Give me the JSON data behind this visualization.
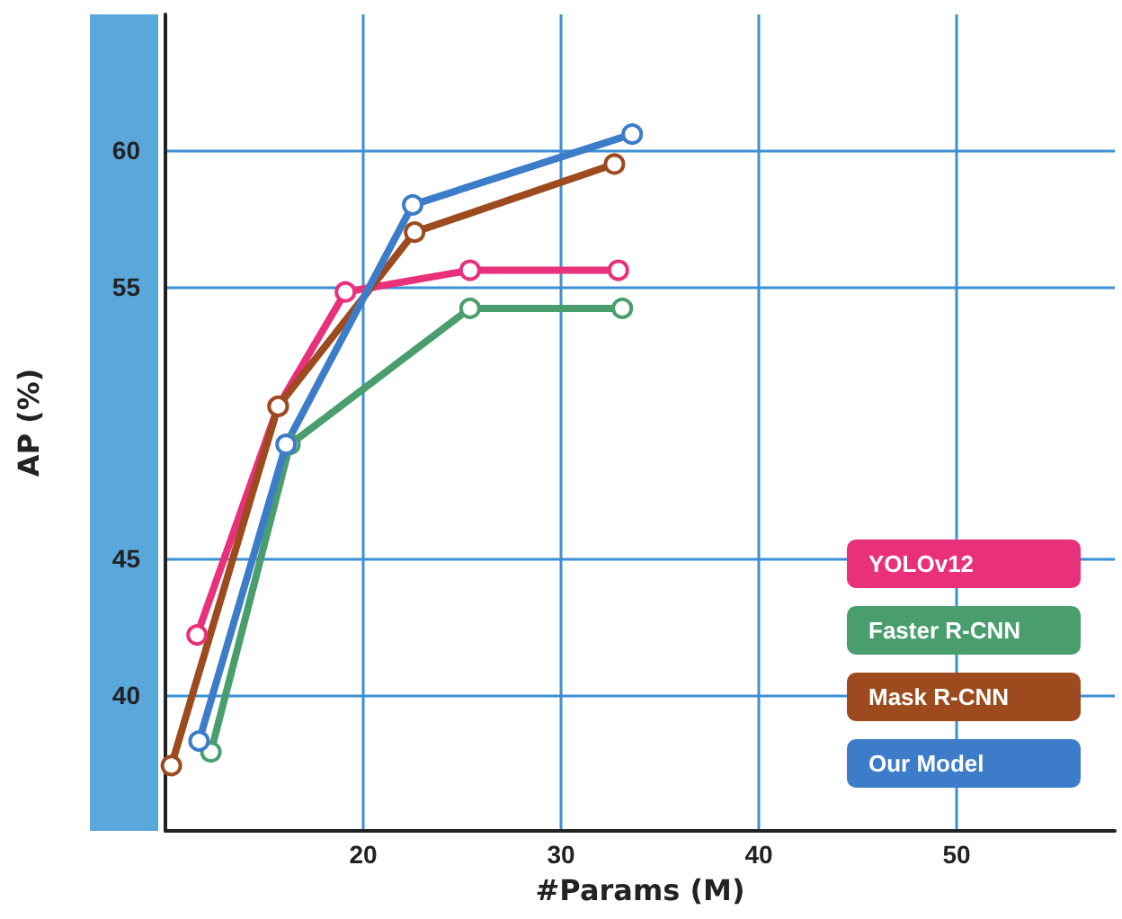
{
  "chart_data": {
    "type": "line",
    "xlabel": "#Params (M)",
    "ylabel": "AP (%)",
    "xlim": [
      10,
      58
    ],
    "xticks": [
      20,
      30,
      40,
      50
    ],
    "ylim": [
      35,
      65
    ],
    "yticks": [
      40,
      45,
      55,
      60
    ],
    "grid": true,
    "legend": "bottom right",
    "marker": "circle",
    "line_style": "solid",
    "series": [
      {
        "name": "YOLOv12",
        "color": "#e8317a",
        "x": [
          11.6,
          15.7,
          19.1,
          25.4,
          32.9
        ],
        "values": [
          42.2,
          50.6,
          54.8,
          55.6,
          55.6
        ]
      },
      {
        "name": "Faster R-CNN",
        "color": "#4a9e6e",
        "x": [
          12.3,
          16.3,
          25.4,
          33.1
        ],
        "values": [
          37.9,
          49.2,
          54.2,
          54.2
        ]
      },
      {
        "name": "Mask R-CNN",
        "color": "#9c4a1e",
        "x": [
          10.3,
          15.7,
          22.6,
          32.7
        ],
        "values": [
          37.4,
          50.6,
          57.0,
          59.5
        ]
      },
      {
        "name": "Our Model",
        "color": "#3d7cc9",
        "x": [
          11.7,
          16.1,
          22.5,
          33.6
        ],
        "values": [
          38.3,
          49.2,
          58.0,
          60.6
        ]
      }
    ]
  }
}
